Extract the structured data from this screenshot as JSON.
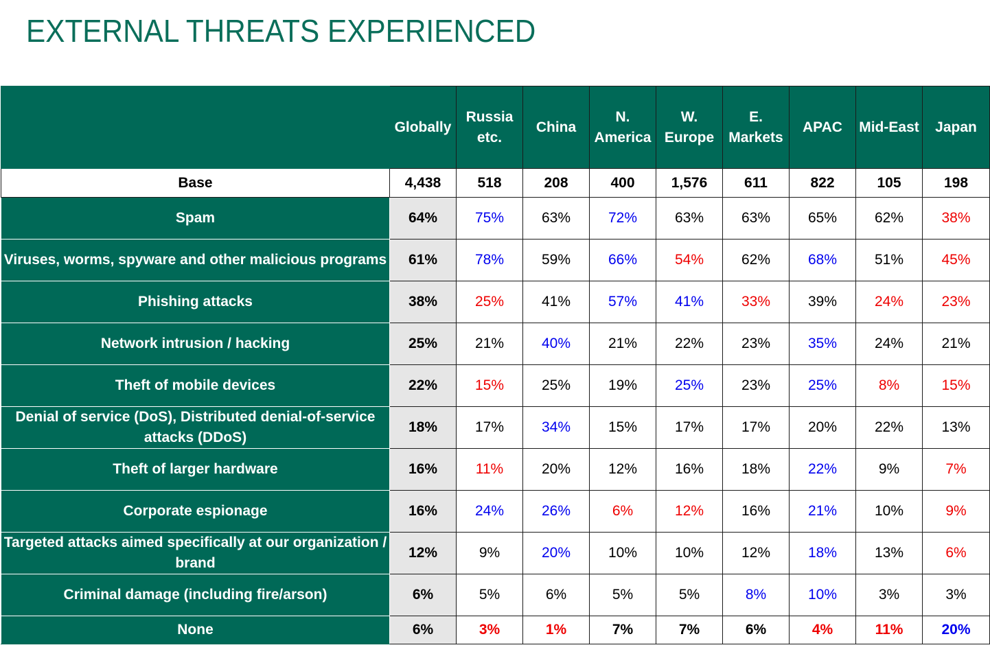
{
  "title": "EXTERNAL THREATS EXPERIENCED",
  "colors": {
    "header_bg": "#006957",
    "global_col_bg": "#e6e6e6",
    "higher": "#0000ee",
    "lower": "#ee0000",
    "neutral": "#000000"
  },
  "chart_data": {
    "type": "table",
    "columns": [
      "Globally",
      "Russia etc.",
      "China",
      "N. America",
      "W. Europe",
      "E. Markets",
      "APAC",
      "Mid-East",
      "Japan"
    ],
    "base": {
      "label": "Base",
      "values": [
        "4,438",
        "518",
        "208",
        "400",
        "1,576",
        "611",
        "822",
        "105",
        "198"
      ]
    },
    "rows": [
      {
        "label": "Spam",
        "values": [
          "64%",
          "75%",
          "63%",
          "72%",
          "63%",
          "63%",
          "65%",
          "62%",
          "38%"
        ],
        "colors": [
          "black",
          "blue",
          "black",
          "blue",
          "black",
          "black",
          "black",
          "black",
          "red"
        ]
      },
      {
        "label": "Viruses, worms, spyware and other malicious programs",
        "values": [
          "61%",
          "78%",
          "59%",
          "66%",
          "54%",
          "62%",
          "68%",
          "51%",
          "45%"
        ],
        "colors": [
          "black",
          "blue",
          "black",
          "blue",
          "red",
          "black",
          "blue",
          "black",
          "red"
        ]
      },
      {
        "label": "Phishing attacks",
        "values": [
          "38%",
          "25%",
          "41%",
          "57%",
          "41%",
          "33%",
          "39%",
          "24%",
          "23%"
        ],
        "colors": [
          "black",
          "red",
          "black",
          "blue",
          "blue",
          "red",
          "black",
          "red",
          "red"
        ]
      },
      {
        "label": "Network intrusion / hacking",
        "values": [
          "25%",
          "21%",
          "40%",
          "21%",
          "22%",
          "23%",
          "35%",
          "24%",
          "21%"
        ],
        "colors": [
          "black",
          "black",
          "blue",
          "black",
          "black",
          "black",
          "blue",
          "black",
          "black"
        ]
      },
      {
        "label": "Theft of mobile devices",
        "values": [
          "22%",
          "15%",
          "25%",
          "19%",
          "25%",
          "23%",
          "25%",
          "8%",
          "15%"
        ],
        "colors": [
          "black",
          "red",
          "black",
          "black",
          "blue",
          "black",
          "blue",
          "red",
          "red"
        ]
      },
      {
        "label": "Denial of service (DoS), Distributed denial-of-service attacks (DDoS)",
        "values": [
          "18%",
          "17%",
          "34%",
          "15%",
          "17%",
          "17%",
          "20%",
          "22%",
          "13%"
        ],
        "colors": [
          "black",
          "black",
          "blue",
          "black",
          "black",
          "black",
          "black",
          "black",
          "black"
        ]
      },
      {
        "label": "Theft of larger hardware",
        "values": [
          "16%",
          "11%",
          "20%",
          "12%",
          "16%",
          "18%",
          "22%",
          "9%",
          "7%"
        ],
        "colors": [
          "black",
          "red",
          "black",
          "black",
          "black",
          "black",
          "blue",
          "black",
          "red"
        ]
      },
      {
        "label": "Corporate espionage",
        "values": [
          "16%",
          "24%",
          "26%",
          "6%",
          "12%",
          "16%",
          "21%",
          "10%",
          "9%"
        ],
        "colors": [
          "black",
          "blue",
          "blue",
          "red",
          "red",
          "black",
          "blue",
          "black",
          "red"
        ]
      },
      {
        "label": "Targeted attacks aimed specifically at our organization / brand",
        "values": [
          "12%",
          "9%",
          "20%",
          "10%",
          "10%",
          "12%",
          "18%",
          "13%",
          "6%"
        ],
        "colors": [
          "black",
          "black",
          "blue",
          "black",
          "black",
          "black",
          "blue",
          "black",
          "red"
        ]
      },
      {
        "label": "Criminal damage (including fire/arson)",
        "values": [
          "6%",
          "5%",
          "6%",
          "5%",
          "5%",
          "8%",
          "10%",
          "3%",
          "3%"
        ],
        "colors": [
          "black",
          "black",
          "black",
          "black",
          "black",
          "blue",
          "blue",
          "black",
          "black"
        ]
      },
      {
        "label": "None",
        "values": [
          "6%",
          "3%",
          "1%",
          "7%",
          "7%",
          "6%",
          "4%",
          "11%",
          "20%"
        ],
        "colors": [
          "black",
          "red",
          "red",
          "black",
          "black",
          "black",
          "red",
          "red",
          "blue"
        ]
      }
    ]
  }
}
